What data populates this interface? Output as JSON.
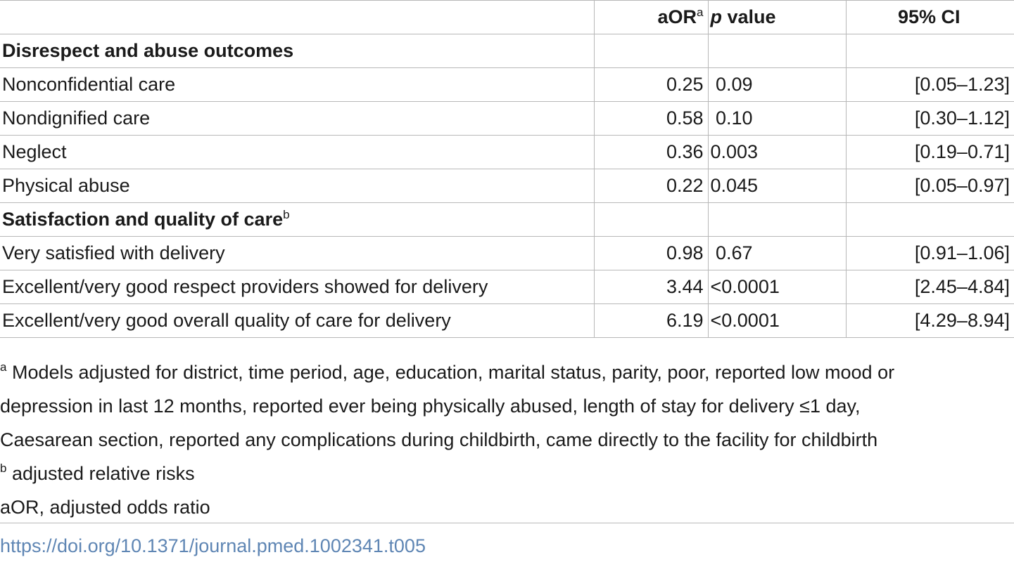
{
  "header": {
    "col_label": "",
    "col_aor": "aOR",
    "col_aor_sup": "a",
    "col_p_italic": "p",
    "col_p_rest": " value",
    "col_ci": "95% CI"
  },
  "sections": [
    {
      "title": "Disrespect and abuse outcomes",
      "title_sup": "",
      "rows": [
        {
          "label": "Nonconfidential care",
          "aor": "0.25",
          "p": " 0.09",
          "ci": "[0.05–1.23]"
        },
        {
          "label": "Nondignified care",
          "aor": "0.58",
          "p": " 0.10",
          "ci": "[0.30–1.12]"
        },
        {
          "label": "Neglect",
          "aor": "0.36",
          "p": "0.003",
          "ci": "[0.19–0.71]"
        },
        {
          "label": "Physical abuse",
          "aor": "0.22",
          "p": "0.045",
          "ci": "[0.05–0.97]"
        }
      ]
    },
    {
      "title": "Satisfaction and quality of care",
      "title_sup": "b",
      "rows": [
        {
          "label": "Very satisfied with delivery",
          "aor": "0.98",
          "p": " 0.67",
          "ci": "[0.91–1.06]"
        },
        {
          "label": "Excellent/very good respect providers showed for delivery",
          "aor": "3.44",
          "p": "<0.0001",
          "ci": "[2.45–4.84]"
        },
        {
          "label": "Excellent/very good overall quality of care for delivery",
          "aor": "6.19",
          "p": "<0.0001",
          "ci": "[4.29–8.94]"
        }
      ]
    }
  ],
  "footnotes": {
    "a_marker": "a",
    "a_line1": " Models adjusted for district, time period, age, education, marital status, parity, poor, reported low mood or",
    "a_line2": "depression in last 12 months, reported ever being physically abused, length of stay for delivery ≤1 day,",
    "a_line3": "Caesarean section, reported any complications during childbirth, came directly to the facility for childbirth",
    "b_marker": "b",
    "b_text": " adjusted relative risks",
    "abbrev": "aOR, adjusted odds ratio"
  },
  "doi": "https://doi.org/10.1371/journal.pmed.1002341.t005"
}
